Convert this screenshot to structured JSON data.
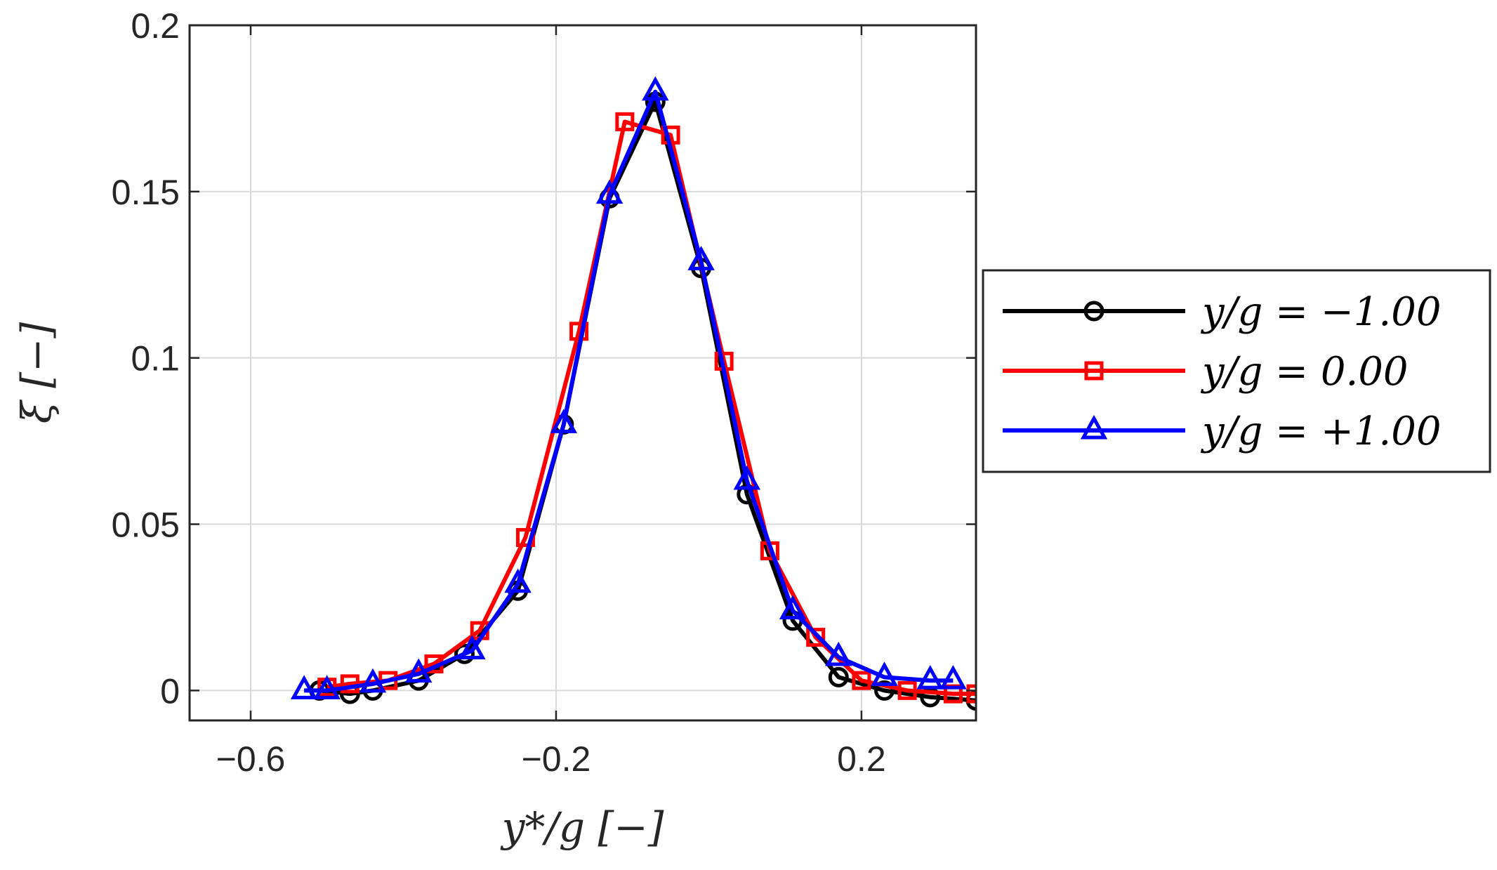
{
  "chart_data": {
    "type": "line",
    "xlabel": "y*/g  [−]",
    "ylabel": "ξ  [−]",
    "xlim": [
      -0.68,
      0.35
    ],
    "ylim": [
      -0.009,
      0.2
    ],
    "xticks": [
      -0.6,
      -0.2,
      0.2
    ],
    "xtick_labels": [
      "−0.6",
      "−0.2",
      "0.2"
    ],
    "yticks": [
      0,
      0.05,
      0.1,
      0.15,
      0.2
    ],
    "ytick_labels": [
      "0",
      "0.05",
      "0.1",
      "0.15",
      "0.2"
    ],
    "grid": true,
    "legend_position": "outside-right",
    "series": [
      {
        "name": "y/g = −1.00",
        "color": "#000000",
        "marker": "circle",
        "x": [
          -0.51,
          -0.47,
          -0.44,
          -0.38,
          -0.32,
          -0.25,
          -0.19,
          -0.13,
          -0.07,
          -0.01,
          0.05,
          0.11,
          0.17,
          0.23,
          0.29,
          0.35
        ],
        "y": [
          0.0,
          -0.001,
          0.0,
          0.003,
          0.011,
          0.03,
          0.08,
          0.148,
          0.177,
          0.127,
          0.059,
          0.021,
          0.004,
          0.0,
          -0.002,
          -0.003
        ]
      },
      {
        "name": "y/g = 0.00",
        "color": "#ff0000",
        "marker": "square",
        "x": [
          -0.5,
          -0.47,
          -0.42,
          -0.36,
          -0.3,
          -0.24,
          -0.17,
          -0.11,
          -0.05,
          0.02,
          0.08,
          0.14,
          0.2,
          0.26,
          0.32,
          0.35
        ],
        "y": [
          0.001,
          0.002,
          0.003,
          0.008,
          0.018,
          0.046,
          0.108,
          0.171,
          0.167,
          0.099,
          0.042,
          0.016,
          0.003,
          0.0,
          -0.001,
          -0.001
        ]
      },
      {
        "name": "y/g = +1.00",
        "color": "#0000ff",
        "marker": "triangle",
        "x": [
          -0.53,
          -0.5,
          -0.44,
          -0.38,
          -0.31,
          -0.25,
          -0.19,
          -0.13,
          -0.07,
          -0.01,
          0.05,
          0.11,
          0.17,
          0.23,
          0.29,
          0.32
        ],
        "y": [
          0.0,
          0.0,
          0.002,
          0.005,
          0.012,
          0.032,
          0.08,
          0.149,
          0.18,
          0.129,
          0.063,
          0.024,
          0.01,
          0.004,
          0.003,
          0.003
        ]
      }
    ]
  }
}
